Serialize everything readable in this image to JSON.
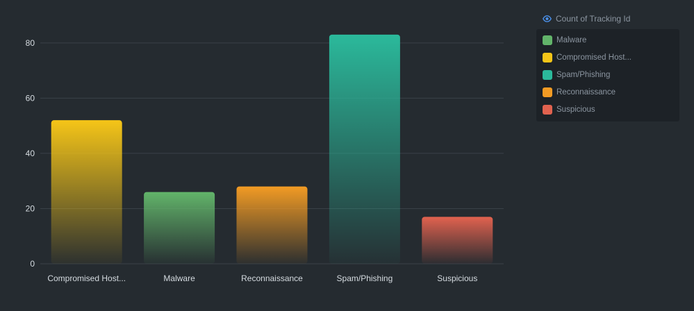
{
  "legend": {
    "title": "Count of Tracking Id",
    "icon": "eye-icon",
    "items": [
      {
        "label": "Malware",
        "color": "#62b46a"
      },
      {
        "label": "Compromised Host...",
        "color": "#f5c518"
      },
      {
        "label": "Spam/Phishing",
        "color": "#2bb99b"
      },
      {
        "label": "Reconnaissance",
        "color": "#f29b24"
      },
      {
        "label": "Suspicious",
        "color": "#e1624f"
      }
    ]
  },
  "chart_data": {
    "type": "bar",
    "categories": [
      "Compromised Host...",
      "Malware",
      "Reconnaissance",
      "Spam/Phishing",
      "Suspicious"
    ],
    "values": [
      52,
      26,
      28,
      83,
      17
    ],
    "colors": [
      "#f5c518",
      "#62b46a",
      "#f29b24",
      "#2bb99b",
      "#e1624f"
    ],
    "ylim": [
      0,
      88
    ],
    "yticks": [
      0,
      20,
      40,
      60,
      80
    ],
    "grid": true,
    "legend_position": "top-right"
  }
}
